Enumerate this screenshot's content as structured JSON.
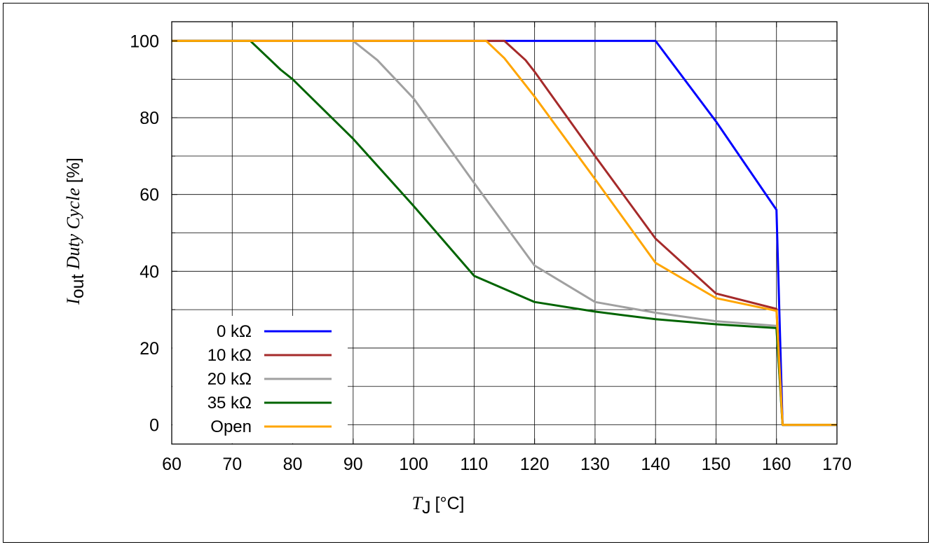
{
  "chart_data": {
    "type": "line",
    "xlabel": {
      "sym": "T",
      "sub": "J",
      "unit": "[°C]"
    },
    "ylabel": {
      "sym": "I",
      "sub": "out",
      "mid": "Duty Cycle",
      "unit": "[%]"
    },
    "xlim": [
      60,
      170
    ],
    "ylim": [
      -5,
      105
    ],
    "x_ticks": [
      "60",
      "70",
      "80",
      "90",
      "100",
      "110",
      "120",
      "130",
      "140",
      "150",
      "160",
      "170"
    ],
    "y_ticks": [
      "0",
      "20",
      "40",
      "60",
      "80",
      "100"
    ],
    "grid": true,
    "legend_position": "bottom-left",
    "series": [
      {
        "name": "0 kΩ",
        "color": "#0000ff",
        "points": [
          [
            60,
            100
          ],
          [
            140,
            100
          ],
          [
            150,
            79
          ],
          [
            160,
            56
          ],
          [
            161,
            0
          ],
          [
            170,
            0
          ]
        ]
      },
      {
        "name": "10 kΩ",
        "color": "#a52a2a",
        "points": [
          [
            60,
            100
          ],
          [
            115,
            100
          ],
          [
            118.5,
            95
          ],
          [
            120,
            92
          ],
          [
            130,
            70
          ],
          [
            140,
            48.5
          ],
          [
            150,
            34.2
          ],
          [
            160,
            30.2
          ],
          [
            161,
            0
          ],
          [
            170,
            0
          ]
        ]
      },
      {
        "name": "20 kΩ",
        "color": "#a0a0a0",
        "points": [
          [
            60,
            100
          ],
          [
            90,
            100
          ],
          [
            94,
            95
          ],
          [
            100,
            85
          ],
          [
            110,
            63
          ],
          [
            120,
            41.5
          ],
          [
            130,
            32
          ],
          [
            140,
            29.2
          ],
          [
            150,
            27
          ],
          [
            160,
            25.8
          ],
          [
            161,
            0
          ],
          [
            170,
            0
          ]
        ]
      },
      {
        "name": "35 kΩ",
        "color": "#006400",
        "points": [
          [
            60,
            100
          ],
          [
            73,
            100
          ],
          [
            78,
            92.5
          ],
          [
            80,
            90
          ],
          [
            90,
            74.5
          ],
          [
            100,
            57
          ],
          [
            110,
            38.8
          ],
          [
            120,
            32
          ],
          [
            130,
            29.5
          ],
          [
            140,
            27.5
          ],
          [
            150,
            26.2
          ],
          [
            160,
            25.2
          ],
          [
            161,
            0
          ],
          [
            170,
            0
          ]
        ]
      },
      {
        "name": "Open",
        "color": "#ffa500",
        "points": [
          [
            60,
            100
          ],
          [
            112,
            100
          ],
          [
            115,
            95.5
          ],
          [
            120,
            85.5
          ],
          [
            130,
            64
          ],
          [
            140,
            42.2
          ],
          [
            150,
            33
          ],
          [
            160,
            29.7
          ],
          [
            161,
            0
          ],
          [
            170,
            0
          ]
        ]
      }
    ]
  }
}
